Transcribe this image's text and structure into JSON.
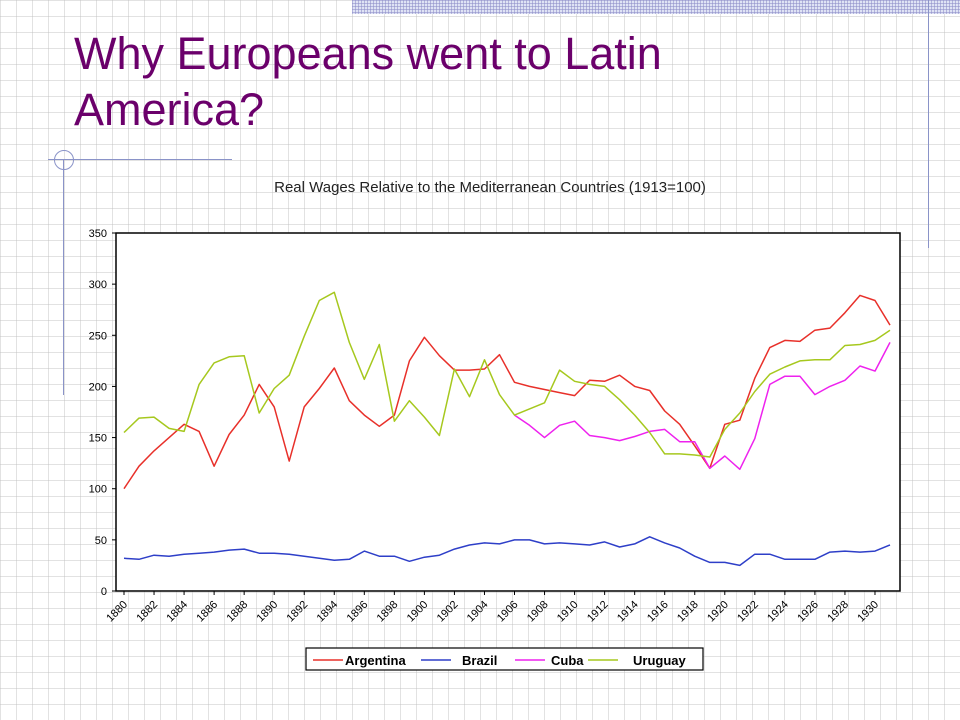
{
  "slide": {
    "title_line1": "Why Europeans went to Latin",
    "title_line2": "America?"
  },
  "colors": {
    "title": "#6b006b",
    "argentina": "#e8302a",
    "brazil": "#2e3fc8",
    "cuba": "#ee22ee",
    "uruguay": "#a6c81e"
  },
  "chart_data": {
    "type": "line",
    "title": "Real Wages Relative to the Mediterranean Countries (1913=100)",
    "xlabel": "",
    "ylabel": "",
    "ylim": [
      0,
      350
    ],
    "yticks": [
      0,
      50,
      100,
      150,
      200,
      250,
      300,
      350
    ],
    "xlim": [
      1880,
      1931
    ],
    "xticks": [
      1880,
      1882,
      1884,
      1886,
      1888,
      1890,
      1892,
      1894,
      1896,
      1898,
      1900,
      1902,
      1904,
      1906,
      1908,
      1910,
      1912,
      1914,
      1916,
      1918,
      1920,
      1922,
      1924,
      1926,
      1928,
      1930
    ],
    "grid": false,
    "legend": "bottom",
    "series": [
      {
        "name": "Argentina",
        "color": "#e8302a",
        "x": [
          1880,
          1881,
          1882,
          1883,
          1884,
          1885,
          1886,
          1887,
          1888,
          1889,
          1890,
          1891,
          1892,
          1893,
          1894,
          1895,
          1896,
          1897,
          1898,
          1899,
          1900,
          1901,
          1902,
          1903,
          1904,
          1905,
          1906,
          1907,
          1908,
          1909,
          1910,
          1911,
          1912,
          1913,
          1914,
          1915,
          1916,
          1917,
          1918,
          1919,
          1920,
          1921,
          1922,
          1923,
          1924,
          1925,
          1926,
          1927,
          1928,
          1929,
          1930,
          1931
        ],
        "y": [
          100,
          122,
          137,
          150,
          163,
          156,
          122,
          153,
          172,
          202,
          180,
          127,
          180,
          198,
          218,
          186,
          172,
          161,
          172,
          225,
          248,
          230,
          216,
          216,
          217,
          231,
          204,
          200,
          197,
          194,
          191,
          206,
          205,
          211,
          200,
          196,
          176,
          163,
          142,
          120,
          163,
          167,
          208,
          238,
          245,
          244,
          255,
          257,
          272,
          289,
          284,
          260
        ]
      },
      {
        "name": "Brazil",
        "color": "#2e3fc8",
        "x": [
          1880,
          1881,
          1882,
          1883,
          1884,
          1885,
          1886,
          1887,
          1888,
          1889,
          1890,
          1891,
          1892,
          1893,
          1894,
          1895,
          1896,
          1897,
          1898,
          1899,
          1900,
          1901,
          1902,
          1903,
          1904,
          1905,
          1906,
          1907,
          1908,
          1909,
          1910,
          1911,
          1912,
          1913,
          1914,
          1915,
          1916,
          1917,
          1918,
          1919,
          1920,
          1921,
          1922,
          1923,
          1924,
          1925,
          1926,
          1927,
          1928,
          1929,
          1930,
          1931
        ],
        "y": [
          32,
          31,
          35,
          34,
          36,
          37,
          38,
          40,
          41,
          37,
          37,
          36,
          34,
          32,
          30,
          31,
          39,
          34,
          34,
          29,
          33,
          35,
          41,
          45,
          47,
          46,
          50,
          50,
          46,
          47,
          46,
          45,
          48,
          43,
          46,
          53,
          47,
          42,
          34,
          28,
          28,
          25,
          36,
          36,
          31,
          31,
          31,
          38,
          39,
          38,
          39,
          45
        ]
      },
      {
        "name": "Cuba",
        "color": "#ee22ee",
        "x": [
          1906,
          1907,
          1908,
          1909,
          1910,
          1911,
          1912,
          1913,
          1914,
          1915,
          1916,
          1917,
          1918,
          1919,
          1920,
          1921,
          1922,
          1923,
          1924,
          1925,
          1926,
          1927,
          1928,
          1929,
          1930,
          1931
        ],
        "y": [
          172,
          162,
          150,
          162,
          166,
          152,
          150,
          147,
          151,
          156,
          158,
          146,
          146,
          120,
          132,
          119,
          149,
          202,
          210,
          210,
          192,
          200,
          206,
          220,
          215,
          243
        ]
      },
      {
        "name": "Uruguay",
        "color": "#a6c81e",
        "x": [
          1880,
          1881,
          1882,
          1883,
          1884,
          1885,
          1886,
          1887,
          1888,
          1889,
          1890,
          1891,
          1892,
          1893,
          1894,
          1895,
          1896,
          1897,
          1898,
          1899,
          1900,
          1901,
          1902,
          1903,
          1904,
          1905,
          1906,
          1907,
          1908,
          1909,
          1910,
          1911,
          1912,
          1913,
          1914,
          1915,
          1916,
          1917,
          1918,
          1919,
          1920,
          1921,
          1922,
          1923,
          1924,
          1925,
          1926,
          1927,
          1928,
          1929,
          1930,
          1931
        ],
        "y": [
          155,
          169,
          170,
          159,
          156,
          202,
          223,
          229,
          230,
          174,
          198,
          211,
          249,
          284,
          292,
          243,
          207,
          241,
          166,
          186,
          170,
          152,
          217,
          190,
          226,
          192,
          172,
          178,
          184,
          216,
          205,
          202,
          200,
          187,
          172,
          155,
          134,
          134,
          133,
          131,
          158,
          174,
          195,
          212,
          219,
          225,
          226,
          226,
          240,
          241,
          245,
          255
        ]
      }
    ]
  }
}
